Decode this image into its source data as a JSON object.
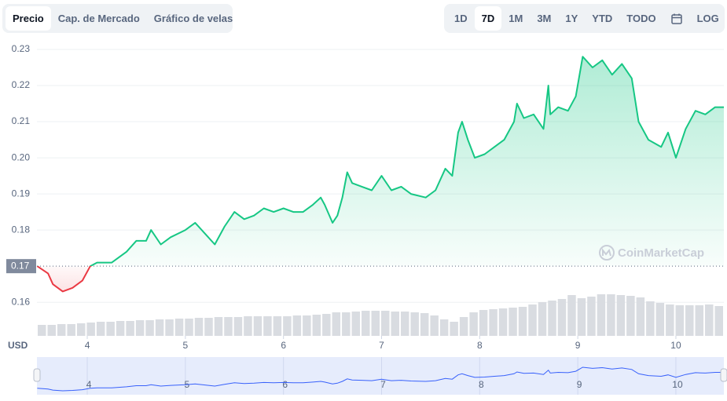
{
  "tabs": [
    "Precio",
    "Cap. de Mercado",
    "Gráfico de velas"
  ],
  "active_tab_index": 0,
  "ranges": [
    "1D",
    "7D",
    "1M",
    "3M",
    "1Y",
    "YTD",
    "TODO"
  ],
  "active_range_index": 1,
  "log_button": "LOG",
  "chart_data": {
    "type": "line",
    "currency": "USD",
    "watermark": "CoinMarketCap",
    "xlim": [
      3.487,
      10.489
    ],
    "xticks": [
      4,
      5,
      6,
      7,
      8,
      9,
      10
    ],
    "ylim": [
      0.1507,
      0.23
    ],
    "yticks": [
      0.16,
      0.18,
      0.19,
      {
        "value": 0.2,
        "label": "0.20"
      },
      0.21,
      0.22,
      0.23
    ],
    "baseline": 0.17,
    "y2lim": [
      0,
      365
    ],
    "grid": true,
    "series": [
      {
        "color": "#16c784",
        "down_color": "#ea3943",
        "x": [
          3.49,
          3.6,
          3.65,
          3.75,
          3.85,
          3.95,
          4.03,
          4.1,
          4.25,
          4.4,
          4.5,
          4.6,
          4.65,
          4.75,
          4.85,
          5.0,
          5.1,
          5.2,
          5.3,
          5.4,
          5.5,
          5.6,
          5.7,
          5.8,
          5.9,
          6.0,
          6.1,
          6.2,
          6.3,
          6.38,
          6.42,
          6.5,
          6.55,
          6.6,
          6.65,
          6.7,
          6.8,
          6.9,
          7.0,
          7.1,
          7.2,
          7.3,
          7.45,
          7.55,
          7.65,
          7.72,
          7.78,
          7.82,
          7.88,
          7.95,
          8.05,
          8.15,
          8.25,
          8.35,
          8.38,
          8.45,
          8.55,
          8.65,
          8.7,
          8.72,
          8.8,
          8.9,
          8.98,
          9.05,
          9.15,
          9.25,
          9.35,
          9.45,
          9.55,
          9.62,
          9.72,
          9.85,
          9.92,
          10.0,
          10.1,
          10.2,
          10.3,
          10.4,
          10.489
        ],
        "values": [
          0.17,
          0.168,
          0.165,
          0.163,
          0.164,
          0.166,
          0.17,
          0.171,
          0.171,
          0.174,
          0.177,
          0.177,
          0.18,
          0.176,
          0.178,
          0.18,
          0.182,
          0.179,
          0.176,
          0.181,
          0.185,
          0.183,
          0.184,
          0.186,
          0.185,
          0.186,
          0.185,
          0.185,
          0.187,
          0.189,
          0.187,
          0.182,
          0.184,
          0.189,
          0.196,
          0.193,
          0.192,
          0.191,
          0.195,
          0.191,
          0.192,
          0.19,
          0.189,
          0.191,
          0.197,
          0.195,
          0.207,
          0.21,
          0.205,
          0.2,
          0.201,
          0.203,
          0.205,
          0.21,
          0.215,
          0.211,
          0.212,
          0.208,
          0.22,
          0.212,
          0.214,
          0.213,
          0.217,
          0.228,
          0.225,
          0.227,
          0.223,
          0.226,
          0.222,
          0.21,
          0.205,
          0.203,
          0.207,
          0.2,
          0.208,
          0.213,
          0.212,
          0.214,
          0.214
        ]
      },
      {
        "type": "bar",
        "axis": "y2",
        "color": "#d9dce1",
        "values": [
          14,
          14,
          15,
          15,
          16,
          17,
          18,
          18,
          19,
          19,
          20,
          20,
          21,
          21,
          22,
          22,
          23,
          23,
          24,
          24,
          24,
          25,
          25,
          25,
          25,
          25,
          26,
          26,
          27,
          28,
          30,
          30,
          31,
          32,
          32,
          32,
          31,
          31,
          30,
          29,
          26,
          21,
          18,
          24,
          30,
          33,
          34,
          35,
          36,
          37,
          40,
          43,
          45,
          47,
          52,
          48,
          50,
          53,
          53,
          52,
          51,
          49,
          44,
          42,
          40,
          39,
          39,
          39,
          40,
          38
        ]
      }
    ],
    "navigator_color": "#3861fb"
  }
}
